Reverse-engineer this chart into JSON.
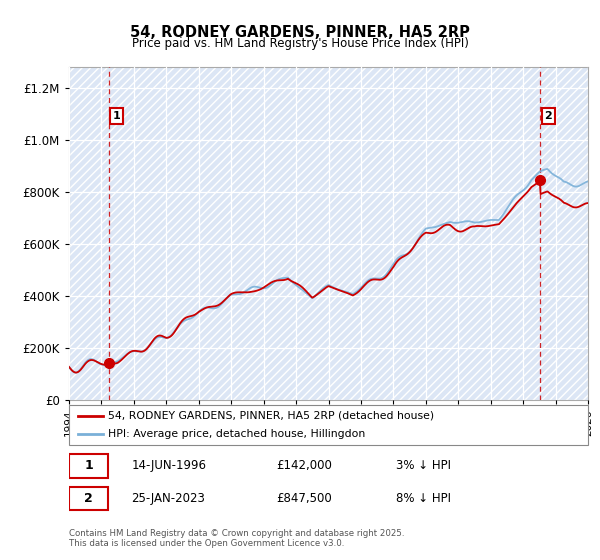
{
  "title": "54, RODNEY GARDENS, PINNER, HA5 2RP",
  "subtitle": "Price paid vs. HM Land Registry's House Price Index (HPI)",
  "transaction1": {
    "date_num": 1996.45,
    "price": 142000,
    "label": "1",
    "date_str": "14-JUN-1996"
  },
  "transaction2": {
    "date_num": 2023.07,
    "price": 847500,
    "label": "2",
    "date_str": "25-JAN-2023"
  },
  "legend_line1": "54, RODNEY GARDENS, PINNER, HA5 2RP (detached house)",
  "legend_line2": "HPI: Average price, detached house, Hillingdon",
  "footer1": "Contains HM Land Registry data © Crown copyright and database right 2025.",
  "footer2": "This data is licensed under the Open Government Licence v3.0.",
  "table1_date": "14-JUN-1996",
  "table1_price": "£142,000",
  "table1_pct": "3% ↓ HPI",
  "table2_date": "25-JAN-2023",
  "table2_price": "£847,500",
  "table2_pct": "8% ↓ HPI",
  "xmin": 1994,
  "xmax": 2026,
  "ymin": 0,
  "ymax": 1280000,
  "hpi_color": "#7ab0d8",
  "price_color": "#cc0000",
  "label_box_color": "#cc0000"
}
